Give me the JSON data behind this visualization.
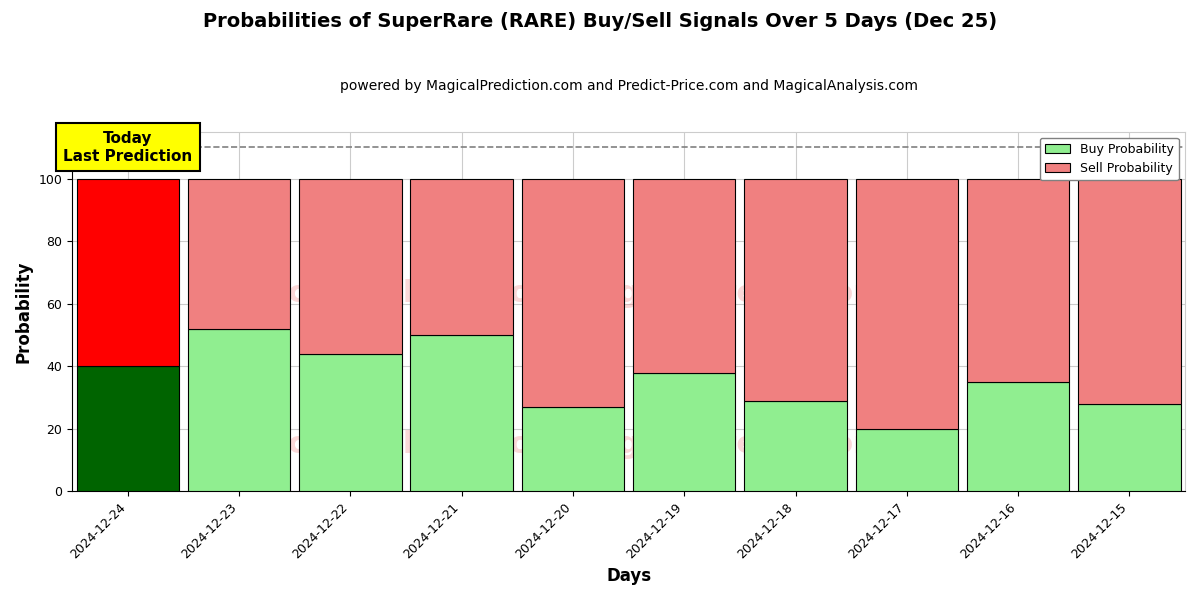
{
  "title": "Probabilities of SuperRare (RARE) Buy/Sell Signals Over 5 Days (Dec 25)",
  "subtitle": "powered by MagicalPrediction.com and Predict-Price.com and MagicalAnalysis.com",
  "xlabel": "Days",
  "ylabel": "Probability",
  "dates": [
    "2024-12-24",
    "2024-12-23",
    "2024-12-22",
    "2024-12-21",
    "2024-12-20",
    "2024-12-19",
    "2024-12-18",
    "2024-12-17",
    "2024-12-16",
    "2024-12-15"
  ],
  "buy_values": [
    40,
    52,
    44,
    50,
    27,
    38,
    29,
    20,
    35,
    28
  ],
  "sell_values": [
    60,
    48,
    56,
    50,
    73,
    62,
    71,
    80,
    65,
    72
  ],
  "today_buy_color": "#006400",
  "today_sell_color": "#FF0000",
  "buy_color": "#90EE90",
  "sell_color": "#F08080",
  "bar_edge_color": "#000000",
  "bar_linewidth": 0.8,
  "ylim": [
    0,
    115
  ],
  "yticks": [
    0,
    20,
    40,
    60,
    80,
    100
  ],
  "dashed_line_y": 110,
  "dashed_line_color": "#808080",
  "annotation_text": "Today\nLast Prediction",
  "annotation_bg": "#FFFF00",
  "legend_buy_label": "Buy Probability",
  "legend_sell_label": "Sell Probability",
  "watermark_color": "#F08080",
  "watermark_alpha": 0.3,
  "grid_color": "#cccccc",
  "background_color": "#ffffff",
  "title_fontsize": 14,
  "subtitle_fontsize": 10,
  "axis_label_fontsize": 12,
  "tick_fontsize": 9,
  "bar_width": 0.92
}
